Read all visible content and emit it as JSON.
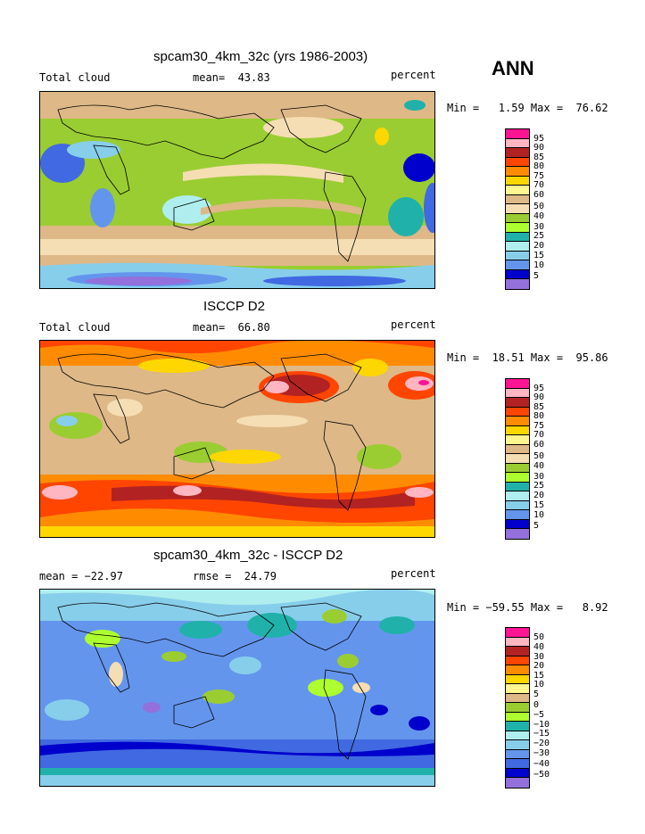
{
  "season_label": "ANN",
  "panels": [
    {
      "title": "spcam30_4km_32c (yrs 1986-2003)",
      "left_label": "Total cloud",
      "center_label": "mean=  43.83",
      "right_label": "percent",
      "minmax": "Min =   1.59 Max =  76.62",
      "colorbar_labels": [
        "95",
        "90",
        "85",
        "80",
        "75",
        "70",
        "60",
        "50",
        "40",
        "30",
        "25",
        "20",
        "15",
        "10",
        "5"
      ]
    },
    {
      "title": "ISCCP D2",
      "left_label": "Total cloud",
      "center_label": "mean=  66.80",
      "right_label": "percent",
      "minmax": "Min =  18.51 Max =  95.86",
      "colorbar_labels": [
        "95",
        "90",
        "85",
        "80",
        "75",
        "70",
        "60",
        "50",
        "40",
        "30",
        "25",
        "20",
        "15",
        "10",
        "5"
      ]
    },
    {
      "title": "spcam30_4km_32c - ISCCP D2",
      "left_label": "mean = −22.97",
      "center_label": "rmse =  24.79",
      "right_label": "percent",
      "minmax": "Min = −59.55 Max =   8.92",
      "colorbar_labels": [
        "50",
        "40",
        "30",
        "20",
        "15",
        "10",
        "5",
        "0",
        "−5",
        "−10",
        "−15",
        "−20",
        "−30",
        "−40",
        "−50"
      ]
    }
  ],
  "colorbar_colors": [
    "#ff1493",
    "#ffb6c1",
    "#b22222",
    "#ff4500",
    "#ff8c00",
    "#ffd700",
    "#fff68f",
    "#deb887",
    "#f5deb3",
    "#9acd32",
    "#adff2f",
    "#20b2aa",
    "#afeeee",
    "#87ceeb",
    "#6495ed",
    "#4169e1",
    "#0000cd",
    "#9370db"
  ]
}
